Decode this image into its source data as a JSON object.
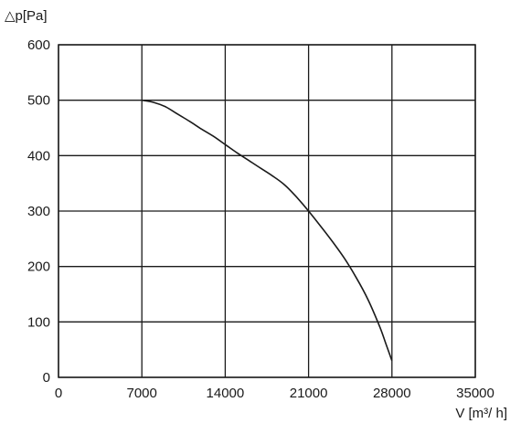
{
  "chart_data": {
    "type": "line",
    "ylabel": "△p[Pa]",
    "xlabel": "V [m³/ h]",
    "xlim": [
      0,
      35000
    ],
    "ylim": [
      0,
      600
    ],
    "x_ticks": [
      "0",
      "7000",
      "14000",
      "21000",
      "28000",
      "35000"
    ],
    "y_ticks": [
      "0",
      "100",
      "200",
      "300",
      "400",
      "500",
      "600"
    ],
    "grid": true,
    "series": [
      {
        "color": "#1a1a1a",
        "x": [
          7000,
          8000,
          9000,
          10000,
          11000,
          12000,
          13000,
          14000,
          15000,
          16000,
          17000,
          18000,
          19000,
          20000,
          21000,
          22000,
          23000,
          24000,
          25000,
          26000,
          27000,
          27500,
          28000
        ],
        "y": [
          500,
          496,
          488,
          475,
          462,
          448,
          435,
          420,
          405,
          391,
          377,
          363,
          347,
          325,
          300,
          273,
          245,
          215,
          180,
          140,
          90,
          60,
          30
        ]
      }
    ]
  }
}
